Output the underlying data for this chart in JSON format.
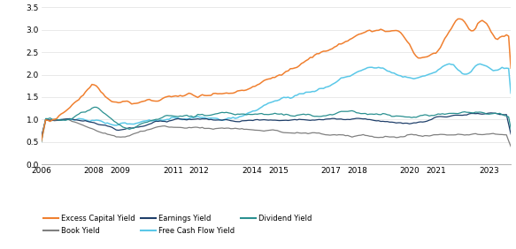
{
  "xlim": [
    2006.0,
    2023.83
  ],
  "ylim": [
    0.0,
    3.5
  ],
  "yticks": [
    0.0,
    0.5,
    1.0,
    1.5,
    2.0,
    2.5,
    3.0,
    3.5
  ],
  "xtick_labels": [
    "2006",
    "2008",
    "2009",
    "2011",
    "2012",
    "2014",
    "2015",
    "2017",
    "2018",
    "2020",
    "2021",
    "2023"
  ],
  "xtick_positions": [
    2006,
    2008,
    2009,
    2011,
    2012,
    2014,
    2015,
    2017,
    2018,
    2020,
    2021,
    2023
  ],
  "colors": {
    "excess_capital": "#F08030",
    "book": "#808080",
    "earnings": "#1F3F6A",
    "free_cash_flow": "#5BC8E8",
    "dividend": "#2A9090"
  },
  "legend": [
    {
      "label": "Excess Capital Yield",
      "color": "#F08030"
    },
    {
      "label": "Book Yield",
      "color": "#808080"
    },
    {
      "label": "Earnings Yield",
      "color": "#1F3F6A"
    },
    {
      "label": "Free Cash Flow Yield",
      "color": "#5BC8E8"
    },
    {
      "label": "Dividend Yield",
      "color": "#2A9090"
    }
  ],
  "background_color": "#ffffff"
}
